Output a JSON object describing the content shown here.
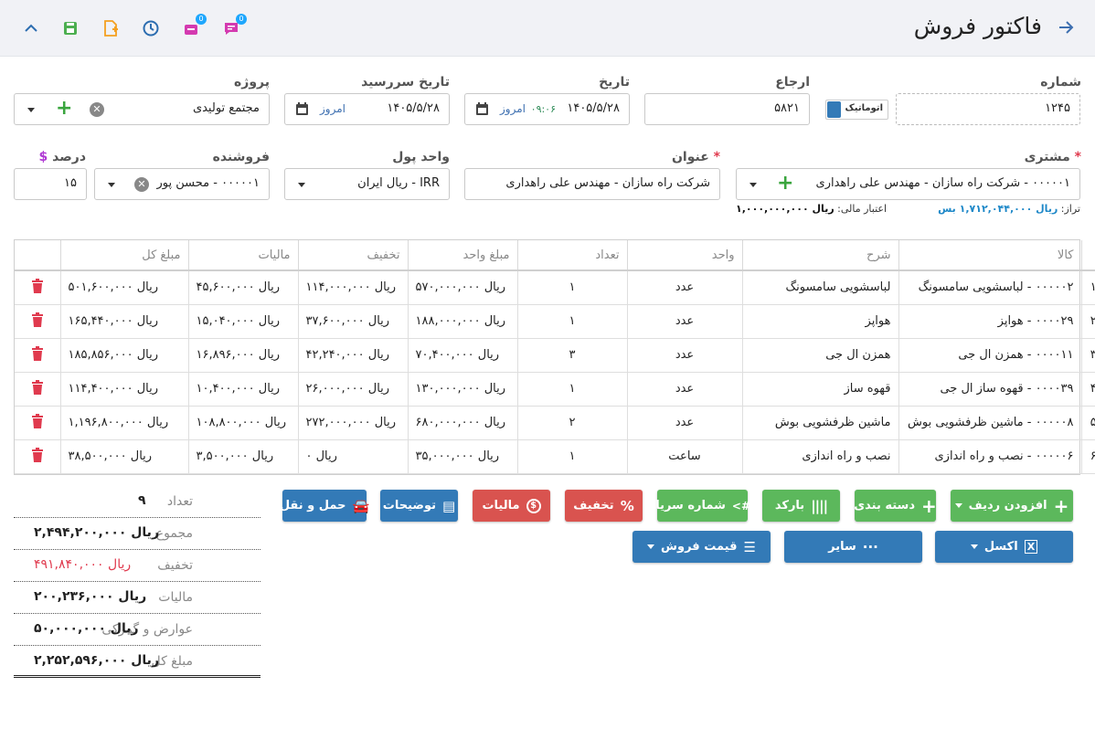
{
  "header": {
    "title": "فاکتور فروش",
    "toolbar_badge_1": "0",
    "toolbar_badge_2": "0",
    "colors": {
      "back": "#3d6fb0",
      "green": "#4caf50",
      "orange": "#f4a020",
      "blue": "#2c6db0",
      "magenta": "#d43ab0"
    }
  },
  "form": {
    "number": {
      "label": "شماره",
      "value": "۱۲۴۵",
      "auto_label": "اتوماتیک"
    },
    "reference": {
      "label": "ارجاع",
      "value": "۵۸۲۱"
    },
    "date": {
      "label": "تاریخ",
      "value": "۱۴۰۵/۵/۲۸",
      "time": "۰۹:۰۶",
      "today": "امروز"
    },
    "due_date": {
      "label": "تاریخ سررسید",
      "value": "۱۴۰۵/۵/۲۸",
      "today": "امروز"
    },
    "project": {
      "label": "پروژه",
      "value": "مجتمع تولیدی"
    },
    "customer": {
      "label": "مشتری",
      "value": "۰۰۰۰۰۱ - شرکت راه سازان - مهندس علی راهداری",
      "balance_label": "تراز:",
      "balance_value": "ریال ۱,۷۱۲,۰۴۴,۰۰۰ بس",
      "credit_label": "اعتبار مالی:",
      "credit_value": "ریال ۱,۰۰۰,۰۰۰,۰۰۰"
    },
    "subject": {
      "label": "عنوان",
      "value": "شرکت راه سازان - مهندس علی راهداری"
    },
    "currency": {
      "label": "واحد پول",
      "value": "IRR - ریال ایران"
    },
    "seller": {
      "label": "فروشنده",
      "value": "۰۰۰۰۰۱ - محسن پور"
    },
    "percent": {
      "label": "درصد",
      "value": "۱۵",
      "currency_sign": "$"
    }
  },
  "table": {
    "headers": [
      "کالا",
      "شرح",
      "واحد",
      "تعداد",
      "مبلغ واحد",
      "تخفیف",
      "مالیات",
      "مبلغ کل"
    ],
    "rows": [
      {
        "idx": "۱",
        "item": "۰۰۰۰۰۲ - لباسشویی سامسونگ",
        "desc": "لباسشویی سامسونگ",
        "unit": "عدد",
        "qty": "۱",
        "price": "ریال ۵۷۰,۰۰۰,۰۰۰",
        "discount": "ریال ۱۱۴,۰۰۰,۰۰۰",
        "tax": "ریال ۴۵,۶۰۰,۰۰۰",
        "total": "ریال ۵۰۱,۶۰۰,۰۰۰"
      },
      {
        "idx": "۲",
        "item": "۰۰۰۰۲۹ - هواپز",
        "desc": "هواپز",
        "unit": "عدد",
        "qty": "۱",
        "price": "ریال ۱۸۸,۰۰۰,۰۰۰",
        "discount": "ریال ۳۷,۶۰۰,۰۰۰",
        "tax": "ریال ۱۵,۰۴۰,۰۰۰",
        "total": "ریال ۱۶۵,۴۴۰,۰۰۰"
      },
      {
        "idx": "۳",
        "item": "۰۰۰۰۱۱ - همزن ال جی",
        "desc": "همزن ال جی",
        "unit": "عدد",
        "qty": "۳",
        "price": "ریال ۷۰,۴۰۰,۰۰۰",
        "discount": "ریال ۴۲,۲۴۰,۰۰۰",
        "tax": "ریال ۱۶,۸۹۶,۰۰۰",
        "total": "ریال ۱۸۵,۸۵۶,۰۰۰"
      },
      {
        "idx": "۴",
        "item": "۰۰۰۰۳۹ - قهوه ساز ال جی",
        "desc": "قهوه ساز",
        "unit": "عدد",
        "qty": "۱",
        "price": "ریال ۱۳۰,۰۰۰,۰۰۰",
        "discount": "ریال ۲۶,۰۰۰,۰۰۰",
        "tax": "ریال ۱۰,۴۰۰,۰۰۰",
        "total": "ریال ۱۱۴,۴۰۰,۰۰۰"
      },
      {
        "idx": "۵",
        "item": "۰۰۰۰۰۸ - ماشین ظرفشویی بوش",
        "desc": "ماشین ظرفشویی بوش",
        "unit": "عدد",
        "qty": "۲",
        "price": "ریال ۶۸۰,۰۰۰,۰۰۰",
        "discount": "ریال ۲۷۲,۰۰۰,۰۰۰",
        "tax": "ریال ۱۰۸,۸۰۰,۰۰۰",
        "total": "ریال ۱,۱۹۶,۸۰۰,۰۰۰"
      },
      {
        "idx": "۶",
        "item": "۰۰۰۰۰۶ - نصب و راه اندازی",
        "desc": "نصب و راه اندازی",
        "unit": "ساعت",
        "qty": "۱",
        "price": "ریال ۳۵,۰۰۰,۰۰۰",
        "discount": "ریال ۰",
        "tax": "ریال ۳,۵۰۰,۰۰۰",
        "total": "ریال ۳۸,۵۰۰,۰۰۰"
      }
    ]
  },
  "buttons": {
    "add_row": "افزودن ردیف",
    "category": "دسته بندی",
    "barcode": "بارکد",
    "serial": "شماره سریال",
    "discount": "تخفیف",
    "tax": "مالیات",
    "notes": "توضیحات",
    "shipping": "حمل و نقل",
    "excel": "اکسل",
    "other": "سایر",
    "sale_price": "قیمت فروش"
  },
  "summary": {
    "count_label": "تعداد",
    "count_value": "۹",
    "sum_label": "مجموع",
    "sum_value": "ریال ۲,۴۹۴,۲۰۰,۰۰۰",
    "discount_label": "تخفیف",
    "discount_value": "ریال ۴۹۱,۸۴۰,۰۰۰",
    "tax_label": "مالیات",
    "tax_value": "ریال ۲۰۰,۲۳۶,۰۰۰",
    "duties_label": "عوارض و گمرکی",
    "duties_value": "ریال ۵۰,۰۰۰,۰۰۰",
    "total_label": "مبلغ کل",
    "total_value": "ریال ۲,۲۵۲,۵۹۶,۰۰۰"
  }
}
